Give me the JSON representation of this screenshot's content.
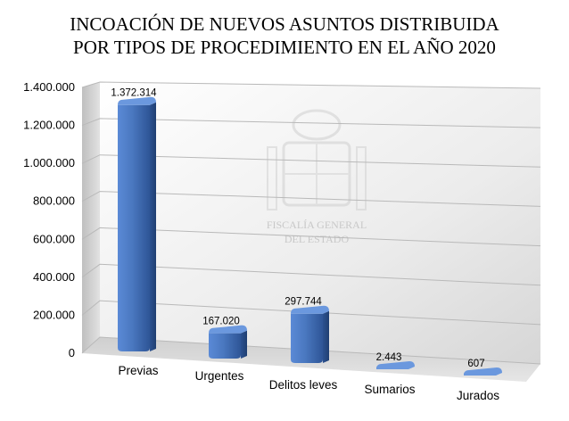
{
  "chart_data": {
    "type": "bar",
    "title_lines": [
      "INCOACIÓN DE NUEVOS ASUNTOS DISTRIBUIDA",
      "POR TIPOS DE PROCEDIMIENTO EN EL AÑO 2020"
    ],
    "categories": [
      "Previas",
      "Urgentes",
      "Delitos leves",
      "Sumarios",
      "Jurados"
    ],
    "values": [
      1372314,
      167020,
      297744,
      2443,
      607
    ],
    "data_labels": [
      "1.372.314",
      "167.020",
      "297.744",
      "2.443",
      "607"
    ],
    "y_ticks": [
      0,
      200000,
      400000,
      600000,
      800000,
      1000000,
      1200000,
      1400000
    ],
    "y_tick_labels": [
      "0",
      "200.000",
      "400.000",
      "600.000",
      "800.000",
      "1.000.000",
      "1.200.000",
      "1.400.000"
    ],
    "ylim": [
      0,
      1400000
    ],
    "grid": true,
    "legend": "none",
    "bar_color": "#4a78c0",
    "watermark": [
      "FISCALÍA GENERAL",
      "DEL ESTADO"
    ]
  }
}
